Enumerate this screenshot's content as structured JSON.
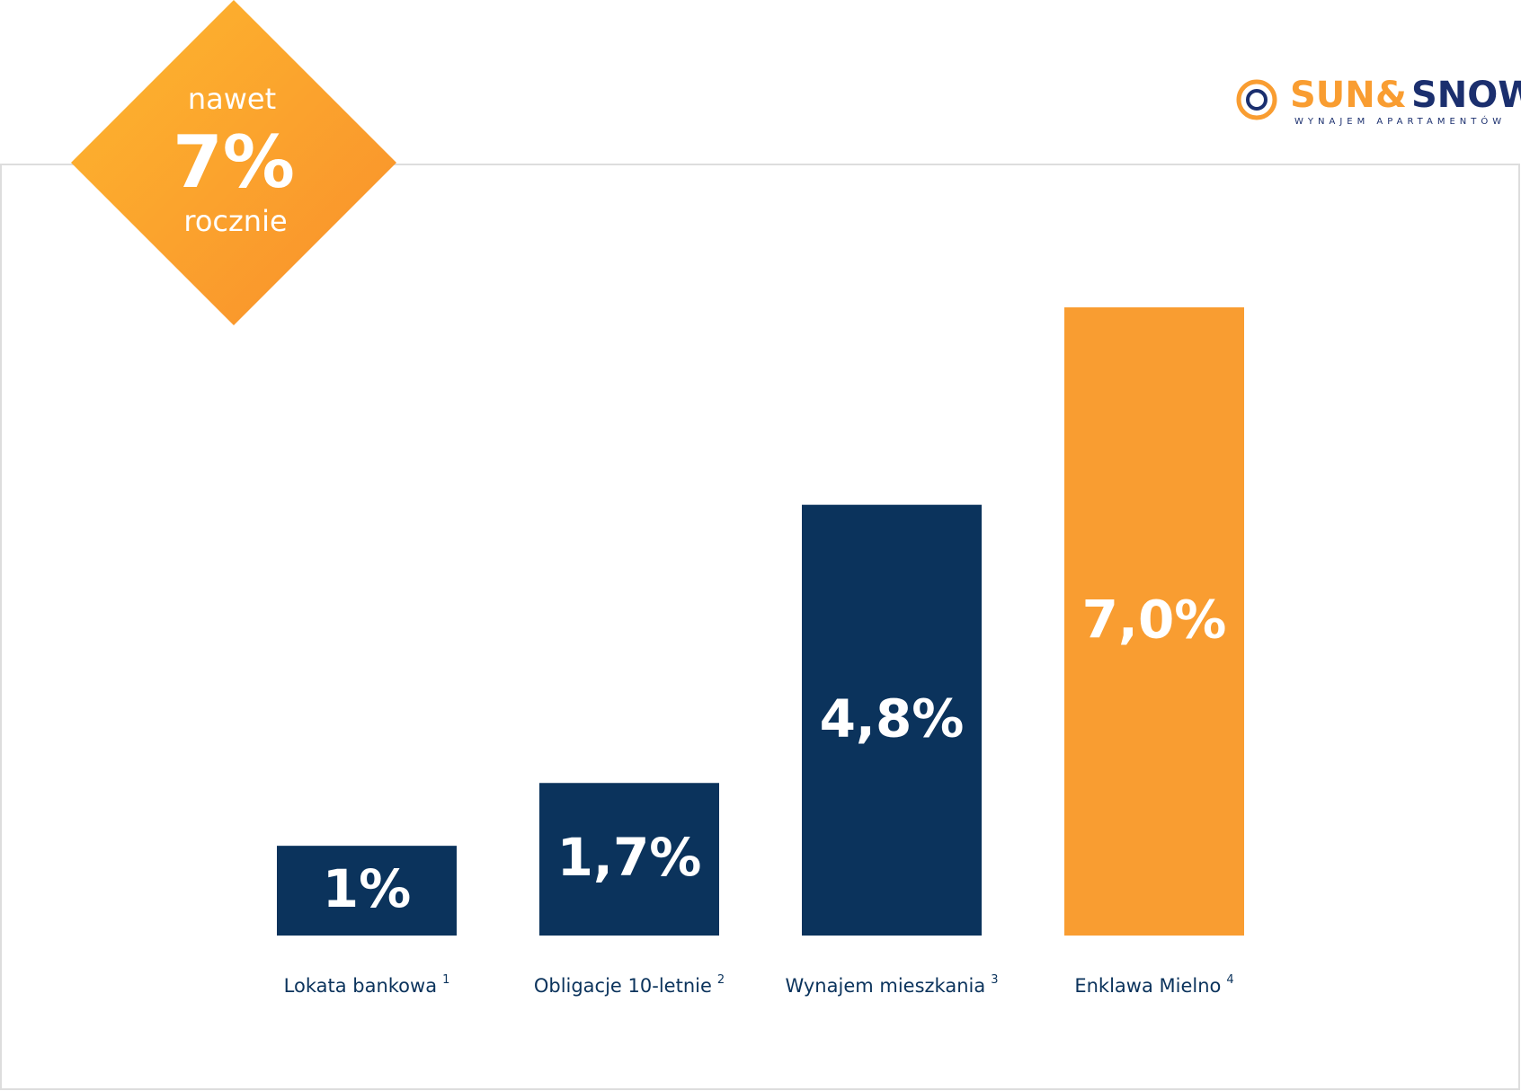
{
  "chart_data": {
    "type": "bar",
    "categories": [
      "Lokata bankowa",
      "Obligacje 10-letnie",
      "Wynajem mieszkania",
      "Enklawa Mielno"
    ],
    "footnotes": [
      "1",
      "2",
      "3",
      "4"
    ],
    "values": [
      1,
      1.7,
      4.8,
      7.0
    ],
    "value_labels": [
      "1%",
      "1,7%",
      "4,8%",
      "7,0%"
    ],
    "colors": [
      "#0b335c",
      "#0b335c",
      "#0b335c",
      "#f99d31"
    ]
  },
  "badge": {
    "top": "nawet",
    "value": "7%",
    "bottom": "rocznie"
  },
  "logo": {
    "name_sun": "SUN",
    "name_amp": "&",
    "name_snow": "SNOW",
    "tagline": "WYNAJEM APARTAMENTÓW"
  }
}
